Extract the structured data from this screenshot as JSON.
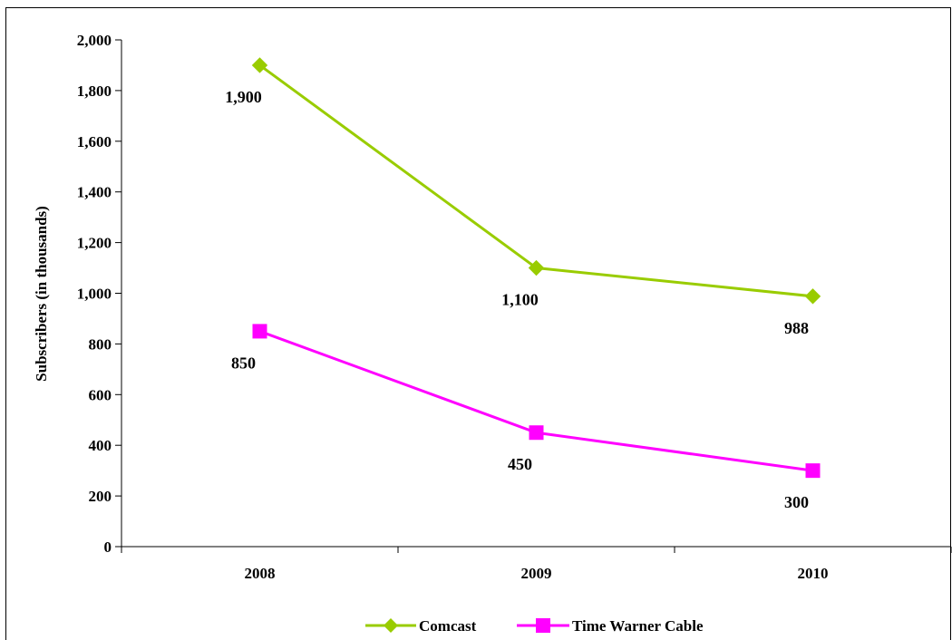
{
  "chart_data": {
    "type": "line",
    "title": "",
    "xlabel": "",
    "ylabel": "Subscribers (in thousands)",
    "categories": [
      "2008",
      "2009",
      "2010"
    ],
    "ylim": [
      0,
      2000
    ],
    "yticks": [
      0,
      200,
      400,
      600,
      800,
      1000,
      1200,
      1400,
      1600,
      1800,
      2000
    ],
    "ytick_labels": [
      "0",
      "200",
      "400",
      "600",
      "800",
      "1,000",
      "1,200",
      "1,400",
      "1,600",
      "1,800",
      "2,000"
    ],
    "grid": false,
    "legend_position": "bottom",
    "series": [
      {
        "name": "Comcast",
        "values": [
          1900,
          1100,
          988
        ],
        "labels": [
          "1,900",
          "1,100",
          "988"
        ],
        "color": "#99cc00",
        "marker": "diamond"
      },
      {
        "name": "Time Warner Cable",
        "values": [
          850,
          450,
          300
        ],
        "labels": [
          "850",
          "450",
          "300"
        ],
        "color": "#ff00ff",
        "marker": "square"
      }
    ]
  }
}
